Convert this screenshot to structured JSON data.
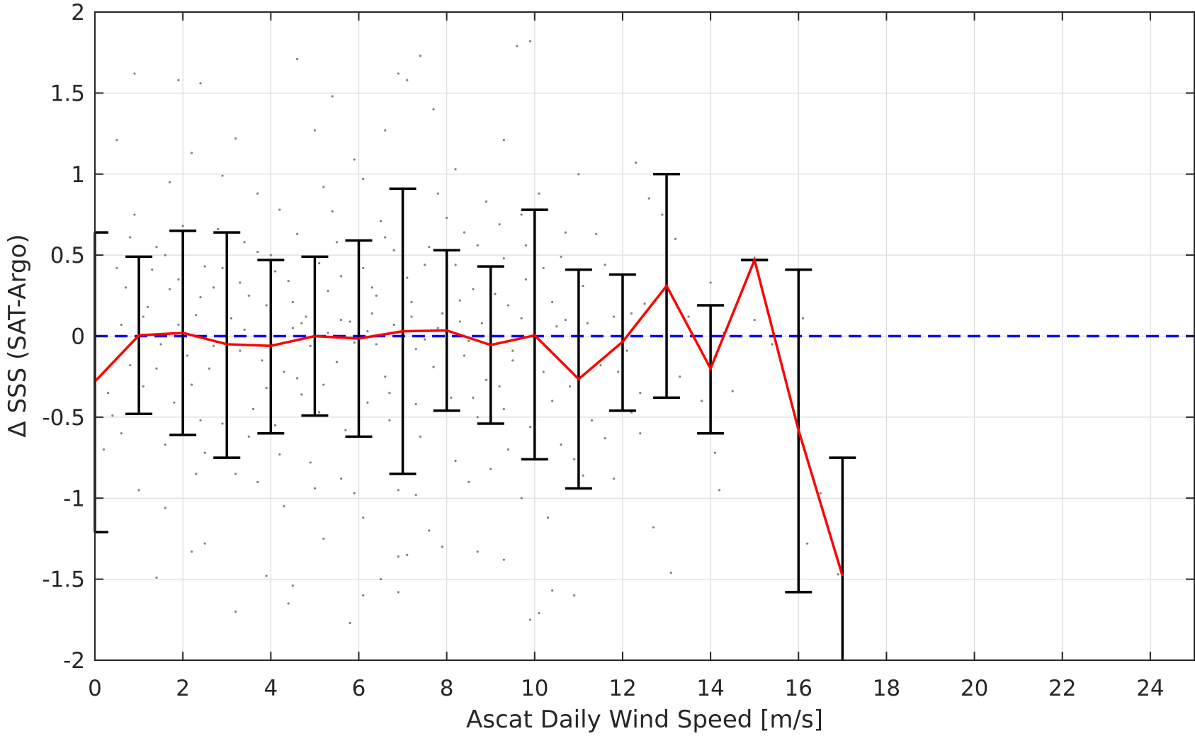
{
  "chart_data": {
    "type": "scatter",
    "xlabel": "Ascat Daily Wind Speed [m/s]",
    "ylabel": "Δ SSS (SAT-Argo)",
    "xlim": [
      0,
      25
    ],
    "ylim": [
      -2,
      2
    ],
    "xticks": [
      0,
      2,
      4,
      6,
      8,
      10,
      12,
      14,
      16,
      18,
      20,
      22,
      24
    ],
    "xtick_labels": [
      "0",
      "2",
      "4",
      "6",
      "8",
      "10",
      "12",
      "14",
      "16",
      "18",
      "20",
      "22",
      "24"
    ],
    "yticks": [
      -2,
      -1.5,
      -1,
      -0.5,
      0,
      0.5,
      1,
      1.5,
      2
    ],
    "ytick_labels": [
      "-2",
      "-1.5",
      "-1",
      "-0.5",
      "0",
      "0.5",
      "1",
      "1.5",
      "2"
    ],
    "grid": true,
    "reference_line": {
      "y": 0,
      "style": "dashed",
      "color": "#0000ff"
    },
    "mean_line": {
      "color": "#ff0000",
      "x": [
        0,
        1,
        2,
        3,
        4,
        5,
        6,
        7,
        8,
        9,
        10,
        11,
        12,
        13,
        14,
        15,
        16,
        17
      ],
      "y": [
        -0.28,
        0.005,
        0.02,
        -0.05,
        -0.06,
        0.0,
        -0.015,
        0.03,
        0.035,
        -0.055,
        0.005,
        -0.265,
        -0.035,
        0.31,
        -0.2,
        0.47,
        -0.58,
        -1.48
      ]
    },
    "error_bars": {
      "color": "#000000",
      "x": [
        0,
        1,
        2,
        3,
        4,
        5,
        6,
        7,
        8,
        9,
        10,
        11,
        12,
        13,
        14,
        15,
        16,
        17
      ],
      "low": [
        -1.21,
        -0.48,
        -0.61,
        -0.75,
        -0.6,
        -0.49,
        -0.62,
        -0.85,
        -0.46,
        -0.54,
        -0.76,
        -0.94,
        -0.46,
        -0.38,
        -0.6,
        0.47,
        -1.58,
        -2.0
      ],
      "high": [
        0.64,
        0.49,
        0.65,
        0.64,
        0.47,
        0.49,
        0.59,
        0.91,
        0.53,
        0.43,
        0.78,
        0.41,
        0.38,
        1.0,
        0.19,
        0.47,
        0.41,
        -0.75
      ]
    },
    "scatter_points": {
      "color": "#808080",
      "points": [
        [
          0.5,
          1.21
        ],
        [
          0.9,
          1.62
        ],
        [
          1.9,
          1.58
        ],
        [
          2.4,
          1.56
        ],
        [
          3.2,
          1.22
        ],
        [
          4.6,
          1.71
        ],
        [
          5.4,
          1.48
        ],
        [
          6.9,
          1.62
        ],
        [
          7.4,
          1.73
        ],
        [
          7.1,
          1.58
        ],
        [
          9.6,
          1.79
        ],
        [
          9.9,
          1.82
        ],
        [
          9.3,
          1.21
        ],
        [
          12.3,
          1.07
        ],
        [
          5.0,
          1.27
        ],
        [
          6.6,
          1.27
        ],
        [
          5.9,
          1.09
        ],
        [
          7.7,
          1.4
        ],
        [
          8.2,
          1.03
        ],
        [
          2.2,
          1.13
        ],
        [
          1.7,
          0.95
        ],
        [
          2.9,
          0.99
        ],
        [
          3.7,
          0.88
        ],
        [
          4.2,
          0.78
        ],
        [
          5.2,
          0.92
        ],
        [
          6.1,
          0.97
        ],
        [
          7.8,
          0.88
        ],
        [
          8.9,
          0.83
        ],
        [
          10.1,
          0.88
        ],
        [
          11.0,
          1.0
        ],
        [
          12.6,
          0.85
        ],
        [
          11.4,
          0.63
        ],
        [
          13.2,
          0.6
        ],
        [
          12.9,
          0.75
        ],
        [
          10.7,
          0.64
        ],
        [
          0.9,
          0.75
        ],
        [
          0.8,
          0.61
        ],
        [
          1.4,
          0.55
        ],
        [
          0.5,
          0.42
        ],
        [
          3.4,
          0.58
        ],
        [
          2.5,
          0.43
        ],
        [
          2.7,
          0.3
        ],
        [
          3.5,
          0.25
        ],
        [
          4.4,
          0.34
        ],
        [
          4.8,
          0.12
        ],
        [
          5.6,
          0.37
        ],
        [
          6.4,
          0.25
        ],
        [
          6.8,
          0.53
        ],
        [
          7.5,
          0.44
        ],
        [
          8.6,
          0.29
        ],
        [
          9.4,
          0.19
        ],
        [
          9.8,
          0.35
        ],
        [
          10.4,
          0.21
        ],
        [
          11.2,
          0.08
        ],
        [
          11.8,
          0.12
        ],
        [
          12.2,
          0.14
        ],
        [
          13.0,
          0.05
        ],
        [
          14.0,
          0.33
        ],
        [
          14.3,
          0.02
        ],
        [
          16.1,
          0.11
        ],
        [
          1.2,
          0.18
        ],
        [
          1.7,
          0.29
        ],
        [
          2.3,
          0.13
        ],
        [
          3.1,
          0.11
        ],
        [
          3.9,
          0.19
        ],
        [
          4.5,
          0.05
        ],
        [
          5.3,
          0.28
        ],
        [
          5.8,
          0.09
        ],
        [
          6.3,
          0.14
        ],
        [
          7.2,
          0.21
        ],
        [
          7.9,
          0.14
        ],
        [
          8.3,
          0.22
        ],
        [
          8.8,
          0.08
        ],
        [
          9.1,
          0.26
        ],
        [
          9.7,
          0.11
        ],
        [
          10.5,
          0.06
        ],
        [
          1.5,
          -0.05
        ],
        [
          2.1,
          -0.12
        ],
        [
          2.6,
          -0.2
        ],
        [
          3.3,
          -0.09
        ],
        [
          3.8,
          -0.15
        ],
        [
          4.3,
          -0.22
        ],
        [
          4.9,
          -0.06
        ],
        [
          5.5,
          -0.16
        ],
        [
          6.0,
          -0.11
        ],
        [
          6.6,
          -0.25
        ],
        [
          7.3,
          -0.08
        ],
        [
          7.7,
          -0.19
        ],
        [
          8.4,
          -0.12
        ],
        [
          8.9,
          -0.27
        ],
        [
          9.5,
          -0.15
        ],
        [
          10.2,
          -0.22
        ],
        [
          10.8,
          -0.31
        ],
        [
          11.5,
          -0.18
        ],
        [
          12.1,
          -0.09
        ],
        [
          13.3,
          -0.25
        ],
        [
          0.3,
          -0.35
        ],
        [
          1.1,
          -0.31
        ],
        [
          1.8,
          -0.41
        ],
        [
          2.4,
          -0.52
        ],
        [
          3.0,
          -0.38
        ],
        [
          3.6,
          -0.45
        ],
        [
          4.1,
          -0.55
        ],
        [
          4.7,
          -0.36
        ],
        [
          5.1,
          -0.47
        ],
        [
          5.7,
          -0.58
        ],
        [
          6.2,
          -0.41
        ],
        [
          6.7,
          -0.52
        ],
        [
          7.4,
          -0.62
        ],
        [
          8.1,
          -0.38
        ],
        [
          8.7,
          -0.5
        ],
        [
          9.3,
          -0.45
        ],
        [
          9.9,
          -0.56
        ],
        [
          10.6,
          -0.67
        ],
        [
          11.3,
          -0.52
        ],
        [
          12.4,
          -0.6
        ],
        [
          1.0,
          -0.95
        ],
        [
          1.6,
          -1.06
        ],
        [
          2.5,
          -0.72
        ],
        [
          3.2,
          -0.85
        ],
        [
          3.7,
          -0.9
        ],
        [
          4.3,
          -1.05
        ],
        [
          4.9,
          -0.78
        ],
        [
          5.6,
          -0.88
        ],
        [
          6.1,
          -1.12
        ],
        [
          6.9,
          -0.95
        ],
        [
          7.6,
          -1.2
        ],
        [
          8.5,
          -0.9
        ],
        [
          9.0,
          -0.82
        ],
        [
          9.7,
          -1.0
        ],
        [
          10.3,
          -1.12
        ],
        [
          10.9,
          -0.76
        ],
        [
          11.8,
          -0.88
        ],
        [
          12.7,
          -1.18
        ],
        [
          13.1,
          -1.46
        ],
        [
          14.1,
          -0.72
        ],
        [
          14.2,
          -0.95
        ],
        [
          16.2,
          -1.28
        ],
        [
          16.5,
          -0.97
        ],
        [
          16.9,
          -1.47
        ],
        [
          1.4,
          -1.49
        ],
        [
          2.2,
          -1.33
        ],
        [
          2.5,
          -1.28
        ],
        [
          3.2,
          -1.7
        ],
        [
          3.9,
          -1.48
        ],
        [
          4.4,
          -1.65
        ],
        [
          4.5,
          -1.54
        ],
        [
          5.2,
          -1.25
        ],
        [
          5.8,
          -1.77
        ],
        [
          6.1,
          -1.6
        ],
        [
          6.5,
          -1.5
        ],
        [
          6.9,
          -1.36
        ],
        [
          7.1,
          -1.35
        ],
        [
          7.9,
          -1.3
        ],
        [
          8.7,
          -1.33
        ],
        [
          9.3,
          -1.38
        ],
        [
          9.9,
          -1.75
        ],
        [
          10.1,
          -1.71
        ],
        [
          10.4,
          -1.57
        ],
        [
          10.9,
          -1.6
        ],
        [
          6.9,
          -1.58
        ],
        [
          0.4,
          -0.49
        ],
        [
          0.6,
          0.07
        ],
        [
          1.3,
          0.41
        ],
        [
          2.0,
          0.68
        ],
        [
          2.8,
          0.66
        ],
        [
          4.0,
          0.5
        ],
        [
          4.6,
          0.63
        ],
        [
          5.4,
          0.77
        ],
        [
          6.5,
          0.71
        ],
        [
          7.0,
          0.82
        ],
        [
          8.0,
          0.73
        ],
        [
          8.4,
          0.64
        ],
        [
          9.2,
          0.69
        ],
        [
          9.7,
          0.75
        ],
        [
          10.6,
          0.49
        ],
        [
          11.1,
          0.31
        ],
        [
          11.6,
          0.44
        ],
        [
          12.0,
          0.3
        ],
        [
          12.5,
          0.2
        ],
        [
          13.5,
          0.12
        ],
        [
          15.0,
          0.1
        ],
        [
          15.4,
          -0.05
        ],
        [
          13.8,
          -0.4
        ],
        [
          14.5,
          -0.34
        ],
        [
          11.1,
          -0.86
        ],
        [
          11.6,
          -0.63
        ],
        [
          12.2,
          -0.47
        ],
        [
          10.0,
          -0.34
        ],
        [
          9.4,
          -0.7
        ],
        [
          8.2,
          -0.77
        ],
        [
          7.3,
          -0.98
        ],
        [
          5.9,
          -0.97
        ],
        [
          5.0,
          -0.94
        ],
        [
          4.2,
          -0.73
        ],
        [
          3.5,
          -0.62
        ],
        [
          2.9,
          -0.54
        ],
        [
          2.3,
          -0.85
        ],
        [
          1.6,
          -0.67
        ],
        [
          0.8,
          -0.18
        ],
        [
          1.9,
          0.35
        ],
        [
          2.9,
          0.42
        ],
        [
          3.7,
          0.52
        ],
        [
          4.5,
          0.21
        ],
        [
          5.1,
          0.45
        ],
        [
          5.5,
          0.58
        ],
        [
          6.1,
          0.42
        ],
        [
          6.6,
          0.61
        ],
        [
          7.1,
          0.36
        ],
        [
          7.6,
          0.55
        ],
        [
          8.2,
          0.44
        ],
        [
          8.7,
          0.56
        ],
        [
          9.3,
          0.48
        ],
        [
          9.8,
          0.56
        ],
        [
          10.2,
          0.42
        ],
        [
          6.2,
          0.03
        ],
        [
          6.4,
          -0.05
        ],
        [
          6.8,
          0.07
        ],
        [
          7.0,
          -0.12
        ],
        [
          7.2,
          0.12
        ],
        [
          7.5,
          -0.02
        ],
        [
          7.8,
          0.05
        ],
        [
          8.0,
          -0.06
        ],
        [
          8.3,
          0.09
        ],
        [
          8.5,
          -0.03
        ],
        [
          5.3,
          0.02
        ],
        [
          5.6,
          0.1
        ],
        [
          5.9,
          -0.04
        ],
        [
          4.7,
          0.08
        ],
        [
          4.0,
          -0.03
        ],
        [
          3.4,
          0.04
        ],
        [
          2.7,
          -0.06
        ],
        [
          1.9,
          0.07
        ],
        [
          9.0,
          0.04
        ],
        [
          9.5,
          -0.09
        ],
        [
          10.0,
          -0.02
        ],
        [
          10.7,
          0.1
        ],
        [
          6.7,
          -0.35
        ],
        [
          7.3,
          -0.42
        ],
        [
          5.2,
          -0.3
        ],
        [
          4.6,
          -0.26
        ],
        [
          3.9,
          -0.32
        ],
        [
          3.0,
          -0.25
        ],
        [
          2.2,
          -0.3
        ],
        [
          8.6,
          -0.38
        ],
        [
          9.2,
          -0.31
        ],
        [
          10.4,
          -0.4
        ],
        [
          11.9,
          -0.22
        ],
        [
          12.4,
          -0.35
        ],
        [
          6.3,
          0.3
        ],
        [
          5.0,
          0.35
        ],
        [
          4.1,
          0.4
        ],
        [
          3.3,
          0.33
        ],
        [
          2.4,
          0.24
        ],
        [
          1.1,
          0.12
        ],
        [
          1.4,
          -0.2
        ],
        [
          0.6,
          -0.6
        ],
        [
          0.2,
          -0.7
        ],
        [
          0.7,
          0.3
        ],
        [
          1.6,
          0.5
        ]
      ]
    }
  }
}
